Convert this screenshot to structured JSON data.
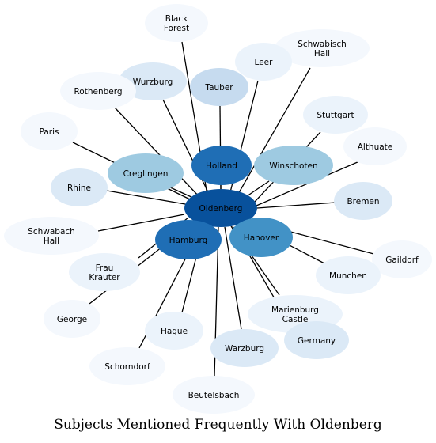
{
  "title": "Subjects Mentioned Frequently With Oldenberg",
  "center": "oldenberg",
  "nodes": [
    {
      "id": "black-forest",
      "lines": [
        "Black",
        "Forest"
      ],
      "color": "#f4f8fd"
    },
    {
      "id": "schwabisch-hall",
      "lines": [
        "Schwabisch",
        "Hall"
      ],
      "color": "#f4f8fd"
    },
    {
      "id": "leer",
      "lines": [
        "Leer"
      ],
      "color": "#ebf3fb"
    },
    {
      "id": "tauber",
      "lines": [
        "Tauber"
      ],
      "color": "#c6dbef"
    },
    {
      "id": "wurzburg",
      "lines": [
        "Wurzburg"
      ],
      "color": "#dbe9f6"
    },
    {
      "id": "rothenberg",
      "lines": [
        "Rothenberg"
      ],
      "color": "#f4f8fd"
    },
    {
      "id": "stuttgart",
      "lines": [
        "Stuttgart"
      ],
      "color": "#ebf3fb"
    },
    {
      "id": "paris",
      "lines": [
        "Paris"
      ],
      "color": "#f4f8fd"
    },
    {
      "id": "althuate",
      "lines": [
        "Althuate"
      ],
      "color": "#f4f8fd"
    },
    {
      "id": "holland",
      "lines": [
        "Holland"
      ],
      "color": "#1f6eb5"
    },
    {
      "id": "winschoten",
      "lines": [
        "Winschoten"
      ],
      "color": "#9ecae1"
    },
    {
      "id": "creglingen",
      "lines": [
        "Creglingen"
      ],
      "color": "#9ecae1"
    },
    {
      "id": "rhine",
      "lines": [
        "Rhine"
      ],
      "color": "#dbe9f6"
    },
    {
      "id": "bremen",
      "lines": [
        "Bremen"
      ],
      "color": "#dbe9f6"
    },
    {
      "id": "oldenberg",
      "lines": [
        "Oldenberg"
      ],
      "color": "#08519c"
    },
    {
      "id": "schwabach-hall",
      "lines": [
        "Schwabach",
        "Hall"
      ],
      "color": "#f4f8fd"
    },
    {
      "id": "hamburg",
      "lines": [
        "Hamburg"
      ],
      "color": "#1f6eb5"
    },
    {
      "id": "hanover",
      "lines": [
        "Hanover"
      ],
      "color": "#4292c6"
    },
    {
      "id": "gaildorf",
      "lines": [
        "Gaildorf"
      ],
      "color": "#f4f8fd"
    },
    {
      "id": "frau-krauter",
      "lines": [
        "Frau",
        "Krauter"
      ],
      "color": "#ebf3fb"
    },
    {
      "id": "munchen",
      "lines": [
        "Munchen"
      ],
      "color": "#ebf3fb"
    },
    {
      "id": "marienburg-castle",
      "lines": [
        "Marienburg",
        "Castle"
      ],
      "color": "#ebf3fb"
    },
    {
      "id": "george",
      "lines": [
        "George"
      ],
      "color": "#f4f8fd"
    },
    {
      "id": "germany",
      "lines": [
        "Germany"
      ],
      "color": "#dbe9f6"
    },
    {
      "id": "hague",
      "lines": [
        "Hague"
      ],
      "color": "#ebf3fb"
    },
    {
      "id": "warzburg",
      "lines": [
        "Warzburg"
      ],
      "color": "#dbe9f6"
    },
    {
      "id": "schorndorf",
      "lines": [
        "Schorndorf"
      ],
      "color": "#f4f8fd"
    },
    {
      "id": "beutelsbach",
      "lines": [
        "Beutelsbach"
      ],
      "color": "#f4f8fd"
    }
  ]
}
